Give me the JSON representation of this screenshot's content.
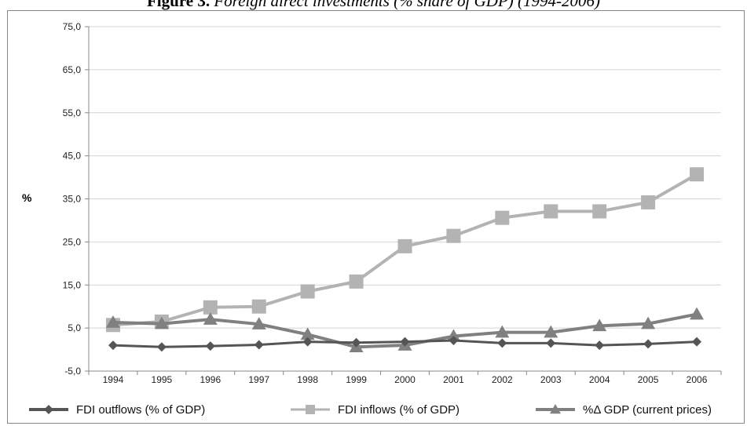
{
  "chart_data": {
    "type": "line",
    "title_prefix": "Figure 3.",
    "title": "Foreign direct investments (% share of GDP) (1994-2006)",
    "xlabel": "",
    "ylabel": "%",
    "categories": [
      "1994",
      "1995",
      "1996",
      "1997",
      "1998",
      "1999",
      "2000",
      "2001",
      "2002",
      "2003",
      "2004",
      "2005",
      "2006"
    ],
    "ylim": [
      -5,
      75
    ],
    "yticks": [
      "75,0",
      "65,0",
      "55,0",
      "45,0",
      "35,0",
      "25,0",
      "15,0",
      "5,0",
      "-5,0"
    ],
    "ytick_values": [
      75,
      65,
      55,
      45,
      35,
      25,
      15,
      5,
      -5
    ],
    "grid": true,
    "legend_position": "bottom",
    "series": [
      {
        "name": "FDI outflows (% of GDP)",
        "marker": "diamond",
        "color": "#555555",
        "values": [
          1.0,
          0.6,
          0.8,
          1.1,
          1.8,
          1.6,
          1.8,
          2.1,
          1.5,
          1.5,
          1.0,
          1.3,
          1.8
        ]
      },
      {
        "name": "FDI inflows (% of GDP)",
        "marker": "square",
        "color": "#b3b3b3",
        "values": [
          5.7,
          6.5,
          9.8,
          10.0,
          13.5,
          15.8,
          24.0,
          26.4,
          30.6,
          32.1,
          32.1,
          34.2,
          40.7
        ]
      },
      {
        "name": "%Δ GDP (current prices)",
        "marker": "triangle",
        "color": "#808080",
        "values": [
          6.3,
          6.0,
          7.0,
          5.9,
          3.5,
          0.6,
          1.0,
          3.1,
          4.0,
          4.0,
          5.5,
          6.0,
          8.2
        ]
      }
    ]
  }
}
